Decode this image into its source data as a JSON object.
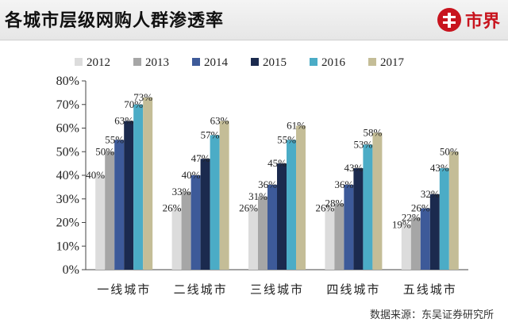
{
  "header": {
    "title": "各城市层级网购人群渗透率",
    "brand_name": "市界"
  },
  "footer": {
    "source": "数据来源：东吴证券研究所"
  },
  "colors": {
    "brand": "#c8141e"
  },
  "chart_data": {
    "type": "bar",
    "title": "",
    "xlabel": "",
    "ylabel": "",
    "ylim": [
      0,
      80
    ],
    "ytick_step": 10,
    "ytick_suffix": "%",
    "grid": false,
    "legend_position": "top",
    "categories": [
      "一线城市",
      "二线城市",
      "三线城市",
      "四线城市",
      "五线城市"
    ],
    "series": [
      {
        "name": "2012",
        "color": "#dcdcdc",
        "values": [
          40,
          26,
          26,
          26,
          19
        ]
      },
      {
        "name": "2013",
        "color": "#a6a6a6",
        "values": [
          50,
          33,
          31,
          28,
          22
        ]
      },
      {
        "name": "2014",
        "color": "#3d5a99",
        "values": [
          55,
          40,
          36,
          36,
          26
        ]
      },
      {
        "name": "2015",
        "color": "#1b2a4e",
        "values": [
          63,
          47,
          45,
          43,
          32
        ]
      },
      {
        "name": "2016",
        "color": "#4bacc6",
        "values": [
          70,
          57,
          55,
          53,
          43
        ]
      },
      {
        "name": "2017",
        "color": "#c4bd97",
        "values": [
          73,
          63,
          61,
          58,
          50
        ]
      }
    ]
  }
}
